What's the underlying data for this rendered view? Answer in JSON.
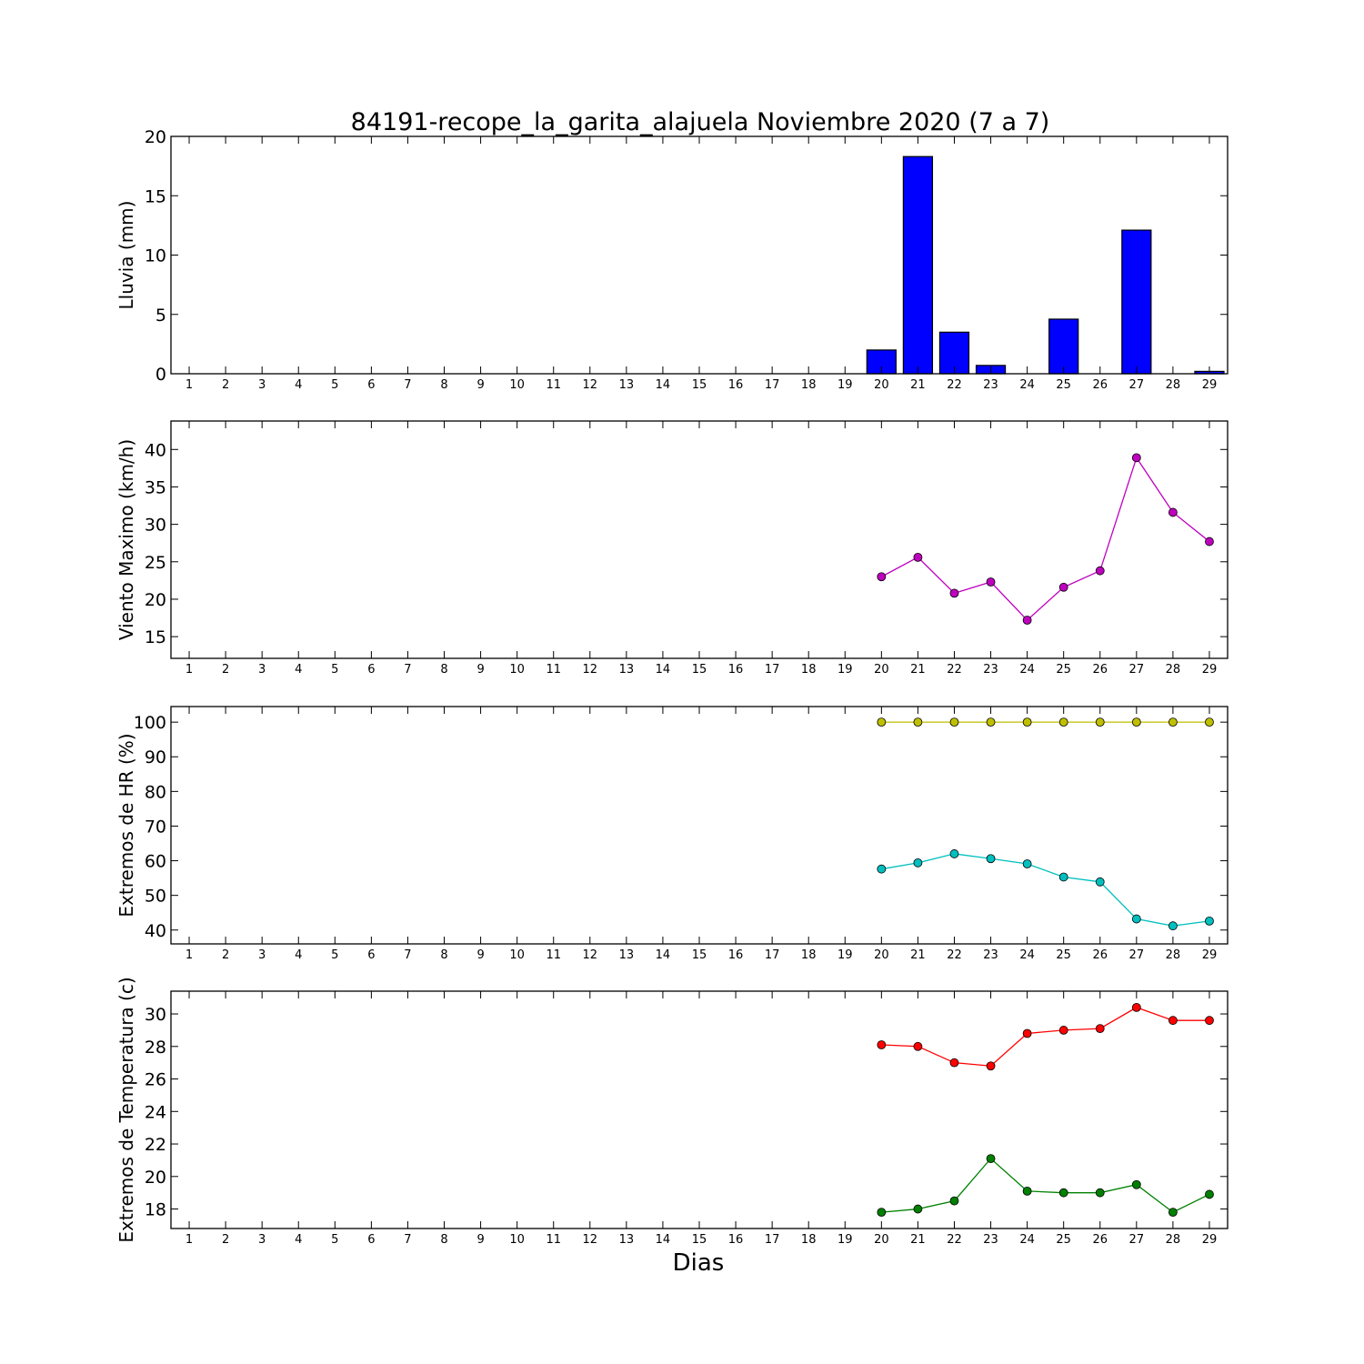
{
  "title": "84191-recope_la_garita_alajuela Noviembre 2020  (7 a 7)",
  "xlabel": "Dias",
  "days": [
    1,
    2,
    3,
    4,
    5,
    6,
    7,
    8,
    9,
    10,
    11,
    12,
    13,
    14,
    15,
    16,
    17,
    18,
    19,
    20,
    21,
    22,
    23,
    24,
    25,
    26,
    27,
    28,
    29
  ],
  "chart_data": [
    {
      "type": "bar",
      "ylabel": "Lluvia (mm)",
      "ylim": [
        0,
        20
      ],
      "yticks": [
        0,
        5,
        10,
        15,
        20
      ],
      "xlim": [
        0.5,
        29.5
      ],
      "series": [
        {
          "color": "#0000ff",
          "x": [
            20,
            21,
            22,
            23,
            25,
            27,
            29
          ],
          "values": [
            2.0,
            18.3,
            3.5,
            0.7,
            4.6,
            12.1,
            0.2
          ]
        }
      ]
    },
    {
      "type": "line",
      "ylabel": "Viento Maximo (km/h)",
      "ylim": [
        12.1,
        43.8
      ],
      "yticks": [
        15,
        20,
        25,
        30,
        35,
        40
      ],
      "xlim": [
        0.5,
        29.5
      ],
      "series": [
        {
          "color": "#bf00bf",
          "x": [
            20,
            21,
            22,
            23,
            24,
            25,
            26,
            27,
            28,
            29
          ],
          "values": [
            23.0,
            25.6,
            20.8,
            22.3,
            17.2,
            21.6,
            23.8,
            38.9,
            31.6,
            27.7
          ]
        }
      ]
    },
    {
      "type": "line",
      "ylabel": "Extremos de HR (%)",
      "ylim": [
        36.0,
        104.5
      ],
      "yticks": [
        40,
        50,
        60,
        70,
        80,
        90,
        100
      ],
      "xlim": [
        0.5,
        29.5
      ],
      "series": [
        {
          "color": "#bfbf00",
          "x": [
            20,
            21,
            22,
            23,
            24,
            25,
            26,
            27,
            28,
            29
          ],
          "values": [
            100,
            100,
            100,
            100,
            100,
            100,
            100,
            100,
            100,
            100
          ]
        },
        {
          "color": "#00bfbf",
          "x": [
            20,
            21,
            22,
            23,
            24,
            25,
            26,
            27,
            28,
            29
          ],
          "values": [
            57.6,
            59.4,
            62.0,
            60.6,
            59.1,
            55.3,
            53.9,
            43.2,
            41.2,
            42.6
          ]
        }
      ]
    },
    {
      "type": "line",
      "ylabel": "Extremos de Temperatura (c)",
      "ylim": [
        16.8,
        31.4
      ],
      "yticks": [
        18,
        20,
        22,
        24,
        26,
        28,
        30
      ],
      "xlim": [
        0.5,
        29.5
      ],
      "series": [
        {
          "color": "#ff0000",
          "x": [
            20,
            21,
            22,
            23,
            24,
            25,
            26,
            27,
            28,
            29
          ],
          "values": [
            28.1,
            28.0,
            27.0,
            26.8,
            28.8,
            29.0,
            29.1,
            30.4,
            29.6,
            29.6
          ]
        },
        {
          "color": "#008000",
          "x": [
            20,
            21,
            22,
            23,
            24,
            25,
            26,
            27,
            28,
            29
          ],
          "values": [
            17.8,
            18.0,
            18.5,
            21.1,
            19.1,
            19.0,
            19.0,
            19.5,
            17.8,
            18.9
          ]
        }
      ]
    }
  ]
}
